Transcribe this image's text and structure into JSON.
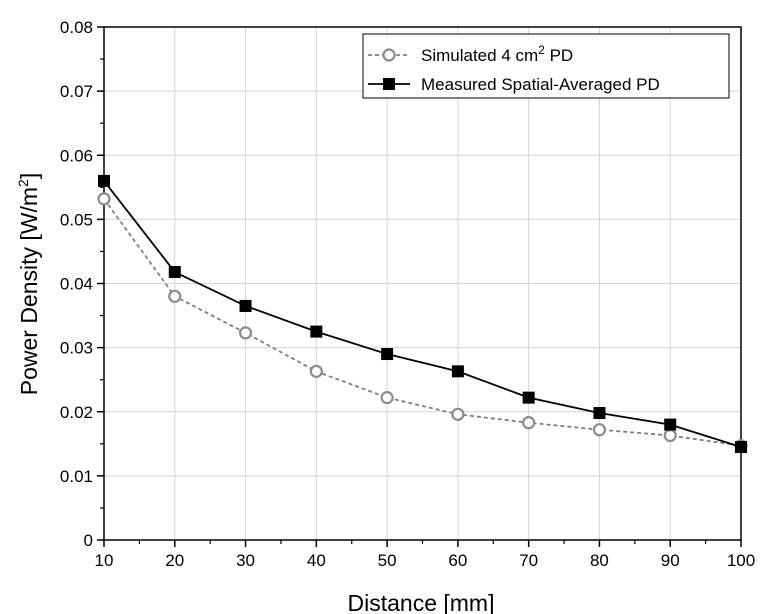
{
  "chart_data": {
    "type": "line",
    "xlabel": "Distance [mm]",
    "ylabel_main": "Power Density [W/m",
    "ylabel_sup": "2",
    "ylabel_tail": "]",
    "xlim": [
      10,
      100
    ],
    "ylim": [
      0,
      0.08
    ],
    "x_ticks": [
      "10",
      "20",
      "30",
      "40",
      "50",
      "60",
      "70",
      "80",
      "90",
      "100"
    ],
    "y_ticks": [
      "0",
      "0.01",
      "0.02",
      "0.03",
      "0.04",
      "0.05",
      "0.06",
      "0.07",
      "0.08"
    ],
    "grid": true,
    "legend_position": "top-right",
    "x": [
      10,
      20,
      30,
      40,
      50,
      60,
      70,
      80,
      90,
      100
    ],
    "series": [
      {
        "name_main": "Simulated 4 cm",
        "name_sup": "2",
        "name_tail": " PD",
        "style": "dashed-gray-open-circle",
        "color": "#808080",
        "values": [
          0.0532,
          0.038,
          0.0323,
          0.0263,
          0.0222,
          0.0196,
          0.0183,
          0.0172,
          0.0163,
          0.0147
        ]
      },
      {
        "name_main": "Measured Spatial-Averaged PD",
        "name_sup": "",
        "name_tail": "",
        "style": "solid-black-filled-square",
        "color": "#000000",
        "values": [
          0.056,
          0.0418,
          0.0365,
          0.0325,
          0.029,
          0.0263,
          0.0222,
          0.0198,
          0.018,
          0.0145
        ]
      }
    ]
  }
}
